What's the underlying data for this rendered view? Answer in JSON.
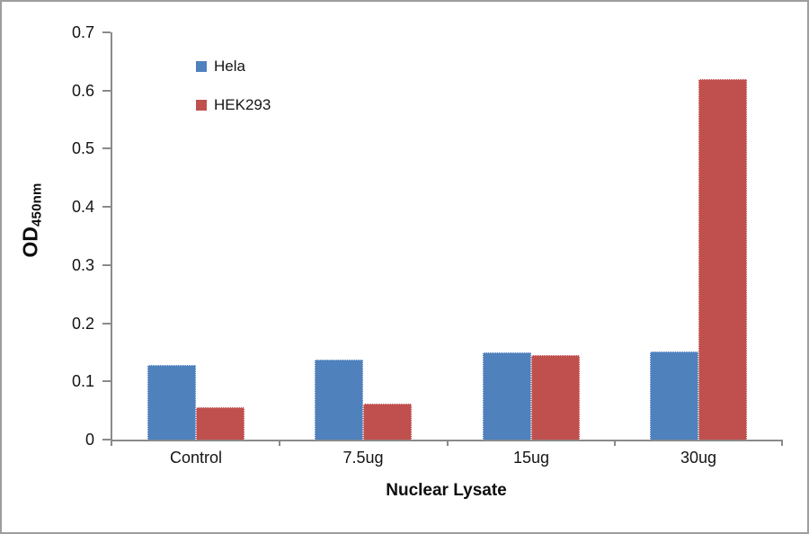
{
  "chart_data": {
    "type": "bar",
    "title": "",
    "categories": [
      "Control",
      "7.5ug",
      "15ug",
      "30ug"
    ],
    "series": [
      {
        "name": "Hela",
        "color": "#4F81BD",
        "values": [
          0.128,
          0.137,
          0.15,
          0.152
        ]
      },
      {
        "name": "HEK293",
        "color": "#C0504D",
        "values": [
          0.055,
          0.062,
          0.146,
          0.62
        ]
      }
    ],
    "xlabel": "Nuclear Lysate",
    "ylabel_main": "OD",
    "ylabel_sub": "450nm",
    "ylim": [
      0,
      0.7
    ],
    "ytick_values": [
      0,
      0.1,
      0.2,
      0.3,
      0.4,
      0.5,
      0.6,
      0.7
    ],
    "ytick_labels": [
      "0",
      "0.1",
      "0.2",
      "0.3",
      "0.4",
      "0.5",
      "0.6",
      "0.7"
    ],
    "grid": false,
    "legend_position": "inside-top-left",
    "axis_color": "#8a8a8a"
  }
}
